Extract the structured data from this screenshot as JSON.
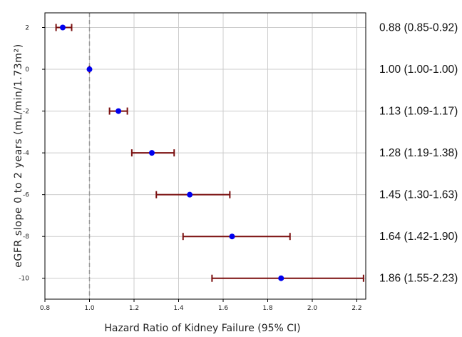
{
  "chart_data": {
    "type": "forest",
    "xlabel": "Hazard Ratio of Kidney Failure (95% CI)",
    "ylabel": "eGFR slope 0 to 2 years (mL/min/1.73m²)",
    "xlim": [
      0.8,
      2.24
    ],
    "ylim": [
      -11,
      2.7
    ],
    "x_ticks": [
      "0.8",
      "1.0",
      "1.2",
      "1.4",
      "1.6",
      "1.8",
      "2.0",
      "2.2"
    ],
    "y_ticks": [
      "2",
      "0",
      "-2",
      "-4",
      "-6",
      "-8",
      "-10"
    ],
    "reference_line": 1.0,
    "grid": true,
    "colors": {
      "point": "#0000ee",
      "ci": "#7a0f0f",
      "reference": "#999999",
      "grid": "#cccccc"
    },
    "points": [
      {
        "slope": 2,
        "hr": 0.88,
        "lower": 0.85,
        "upper": 0.92,
        "label": "0.88 (0.85-0.92)"
      },
      {
        "slope": 0,
        "hr": 1.0,
        "lower": 1.0,
        "upper": 1.0,
        "label": "1.00 (1.00-1.00)"
      },
      {
        "slope": -2,
        "hr": 1.13,
        "lower": 1.09,
        "upper": 1.17,
        "label": "1.13 (1.09-1.17)"
      },
      {
        "slope": -4,
        "hr": 1.28,
        "lower": 1.19,
        "upper": 1.38,
        "label": "1.28 (1.19-1.38)"
      },
      {
        "slope": -6,
        "hr": 1.45,
        "lower": 1.3,
        "upper": 1.63,
        "label": "1.45 (1.30-1.63)"
      },
      {
        "slope": -8,
        "hr": 1.64,
        "lower": 1.42,
        "upper": 1.9,
        "label": "1.64 (1.42-1.90)"
      },
      {
        "slope": -10,
        "hr": 1.86,
        "lower": 1.55,
        "upper": 2.23,
        "label": "1.86 (1.55-2.23)"
      }
    ]
  }
}
